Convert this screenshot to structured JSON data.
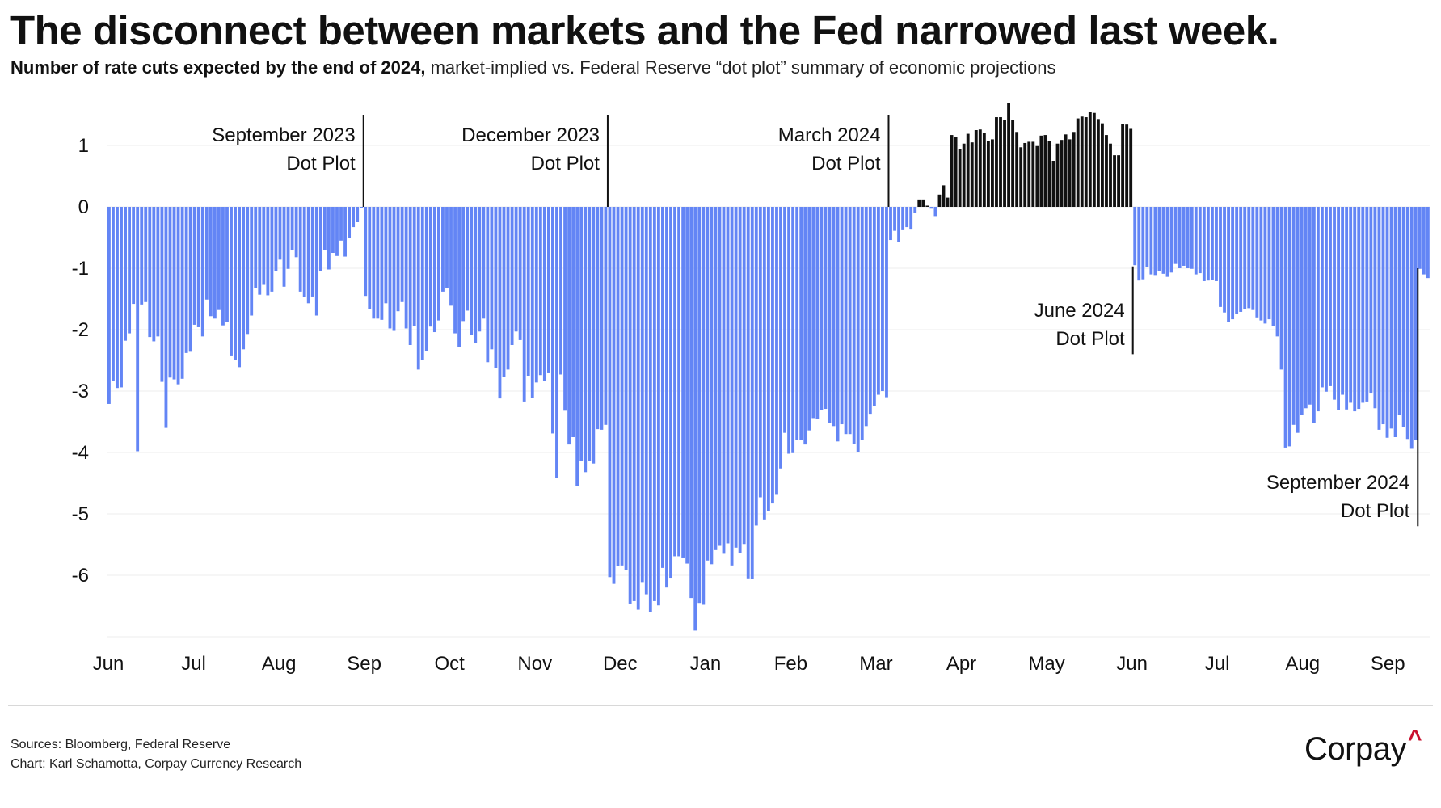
{
  "header": {
    "title": "The disconnect between markets and the Fed narrowed last week.",
    "subtitle_bold": "Number of rate cuts expected by the end of 2024,",
    "subtitle_rest": " market-implied vs. Federal Reserve “dot plot” summary of economic projections"
  },
  "chart_data": {
    "type": "bar",
    "title": "The disconnect between markets and the Fed narrowed last week.",
    "ylabel": "Number of rate cuts expected by the end of 2024",
    "xlabel": "",
    "ylim": [
      -7,
      1.7
    ],
    "yticks": [
      1,
      0,
      -1,
      -2,
      -3,
      -4,
      -5,
      -6
    ],
    "ytick_labels": [
      "1",
      "0",
      "-1",
      "-2",
      "-3",
      "-4",
      "-5",
      "-6"
    ],
    "xtick_labels": [
      "Jun",
      "Jul",
      "Aug",
      "Sep",
      "Oct",
      "Nov",
      "Dec",
      "Jan",
      "Feb",
      "Mar",
      "Apr",
      "May",
      "Jun",
      "Jul",
      "Aug",
      "Sep"
    ],
    "grid": true,
    "legend": "none",
    "colors": {
      "negative": "#6385f5",
      "positive": "#111111",
      "annotation": "#111111"
    },
    "frequency": "business daily, Jun 2023 to Sep 2024",
    "values": [
      -3.21,
      -2.84,
      -2.95,
      -2.94,
      -2.18,
      -2.06,
      -1.58,
      -3.98,
      -1.59,
      -1.55,
      -2.12,
      -2.19,
      -2.11,
      -2.85,
      -3.6,
      -2.78,
      -2.81,
      -2.89,
      -2.8,
      -2.38,
      -2.36,
      -1.92,
      -1.96,
      -2.11,
      -1.51,
      -1.78,
      -1.82,
      -1.68,
      -1.93,
      -1.87,
      -2.42,
      -2.5,
      -2.61,
      -2.32,
      -2.07,
      -1.77,
      -1.32,
      -1.43,
      -1.27,
      -1.44,
      -1.38,
      -1.05,
      -0.86,
      -1.3,
      -1.01,
      -0.71,
      -0.82,
      -1.38,
      -1.47,
      -1.57,
      -1.46,
      -1.77,
      -1.04,
      -0.71,
      -1.02,
      -0.75,
      -0.8,
      -0.55,
      -0.81,
      -0.5,
      -0.33,
      -0.25,
      -0.02,
      -1.45,
      -1.66,
      -1.82,
      -1.82,
      -1.84,
      -1.57,
      -1.98,
      -2.02,
      -1.7,
      -1.55,
      -1.98,
      -2.25,
      -1.94,
      -2.65,
      -2.49,
      -2.35,
      -1.95,
      -2.04,
      -1.85,
      -1.38,
      -1.32,
      -1.61,
      -2.06,
      -2.28,
      -1.86,
      -1.69,
      -2.08,
      -2.22,
      -2.03,
      -1.82,
      -2.53,
      -2.32,
      -2.62,
      -3.12,
      -2.77,
      -2.65,
      -2.25,
      -2.03,
      -2.17,
      -3.17,
      -2.75,
      -3.11,
      -2.86,
      -2.74,
      -2.84,
      -2.71,
      -3.69,
      -4.41,
      -2.73,
      -3.32,
      -3.87,
      -3.75,
      -4.55,
      -4.14,
      -4.32,
      -4.14,
      -4.18,
      -3.62,
      -3.63,
      -3.55,
      -6.03,
      -6.14,
      -5.85,
      -5.84,
      -5.91,
      -6.46,
      -6.42,
      -6.56,
      -6.11,
      -6.31,
      -6.6,
      -6.42,
      -6.49,
      -5.88,
      -6.2,
      -6.04,
      -5.69,
      -5.69,
      -5.71,
      -5.81,
      -6.37,
      -6.9,
      -6.45,
      -6.48,
      -5.76,
      -5.82,
      -5.59,
      -5.52,
      -5.65,
      -5.48,
      -5.84,
      -5.55,
      -5.64,
      -5.49,
      -6.05,
      -6.06,
      -5.19,
      -4.73,
      -5.09,
      -4.95,
      -4.83,
      -4.69,
      -4.26,
      -3.68,
      -4.02,
      -4.01,
      -3.79,
      -3.8,
      -3.87,
      -3.64,
      -3.44,
      -3.46,
      -3.31,
      -3.29,
      -3.52,
      -3.57,
      -3.82,
      -3.54,
      -3.7,
      -3.7,
      -3.86,
      -3.99,
      -3.8,
      -3.57,
      -3.37,
      -3.25,
      -3.06,
      -3.0,
      -3.1,
      -0.54,
      -0.39,
      -0.57,
      -0.38,
      -0.33,
      -0.37,
      -0.1,
      0.12,
      0.12,
      0.02,
      -0.03,
      -0.15,
      0.2,
      0.35,
      0.15,
      1.17,
      1.14,
      0.94,
      1.03,
      1.19,
      1.05,
      1.25,
      1.26,
      1.21,
      1.07,
      1.1,
      1.46,
      1.46,
      1.42,
      1.69,
      1.42,
      1.22,
      0.97,
      1.04,
      1.06,
      1.06,
      0.99,
      1.16,
      1.17,
      1.07,
      0.75,
      1.03,
      1.09,
      1.18,
      1.1,
      1.22,
      1.44,
      1.47,
      1.46,
      1.55,
      1.53,
      1.43,
      1.36,
      1.17,
      1.03,
      0.84,
      0.84,
      1.35,
      1.34,
      1.27,
      -0.95,
      -1.2,
      -1.18,
      -0.98,
      -1.1,
      -1.11,
      -1.04,
      -1.09,
      -1.14,
      -1.07,
      -0.93,
      -1.0,
      -0.96,
      -1.0,
      -1.01,
      -1.1,
      -1.08,
      -1.21,
      -1.2,
      -1.19,
      -1.21,
      -1.63,
      -1.72,
      -1.87,
      -1.83,
      -1.75,
      -1.71,
      -1.67,
      -1.65,
      -1.68,
      -1.8,
      -1.85,
      -1.9,
      -1.83,
      -1.94,
      -2.11,
      -2.65,
      -3.92,
      -3.9,
      -3.55,
      -3.68,
      -3.39,
      -3.28,
      -3.22,
      -3.52,
      -3.33,
      -2.94,
      -3.01,
      -2.92,
      -3.14,
      -3.31,
      -3.06,
      -3.3,
      -3.19,
      -3.33,
      -3.29,
      -3.19,
      -3.17,
      -3.04,
      -3.28,
      -3.63,
      -3.54,
      -3.76,
      -3.61,
      -3.75,
      -3.39,
      -3.58,
      -3.78,
      -3.94,
      -3.8,
      -1.01,
      -1.1,
      -1.16
    ],
    "annotations": [
      {
        "line1": "September 2023",
        "line2": "Dot Plot",
        "bar_index": 63,
        "y_from": 0,
        "y_to": 1.5,
        "label_side": "left",
        "label_position": "above-zero"
      },
      {
        "line1": "December 2023",
        "line2": "Dot Plot",
        "bar_index": 123,
        "y_from": 0,
        "y_to": 1.5,
        "label_side": "left",
        "label_position": "above-zero"
      },
      {
        "line1": "March 2024",
        "line2": "Dot Plot",
        "bar_index": 192,
        "y_from": 0,
        "y_to": 1.5,
        "label_side": "left",
        "label_position": "above-zero"
      },
      {
        "line1": "June 2024",
        "line2": "Dot Plot",
        "bar_index": 252,
        "y_from": -0.97,
        "y_to": -2.4,
        "label_side": "left",
        "label_position": "below-line-start"
      },
      {
        "line1": "September 2024",
        "line2": "Dot Plot",
        "bar_index": 322,
        "y_from": -1.0,
        "y_to": -5.2,
        "label_side": "left",
        "label_position": "bottom"
      }
    ]
  },
  "footer": {
    "sources": "Sources: Bloomberg, Federal Reserve",
    "credit": "Chart: Karl Schamotta, Corpay Currency Research"
  },
  "logo": {
    "text": "Corpay",
    "mark": "^",
    "mark_color": "#c8102e"
  }
}
